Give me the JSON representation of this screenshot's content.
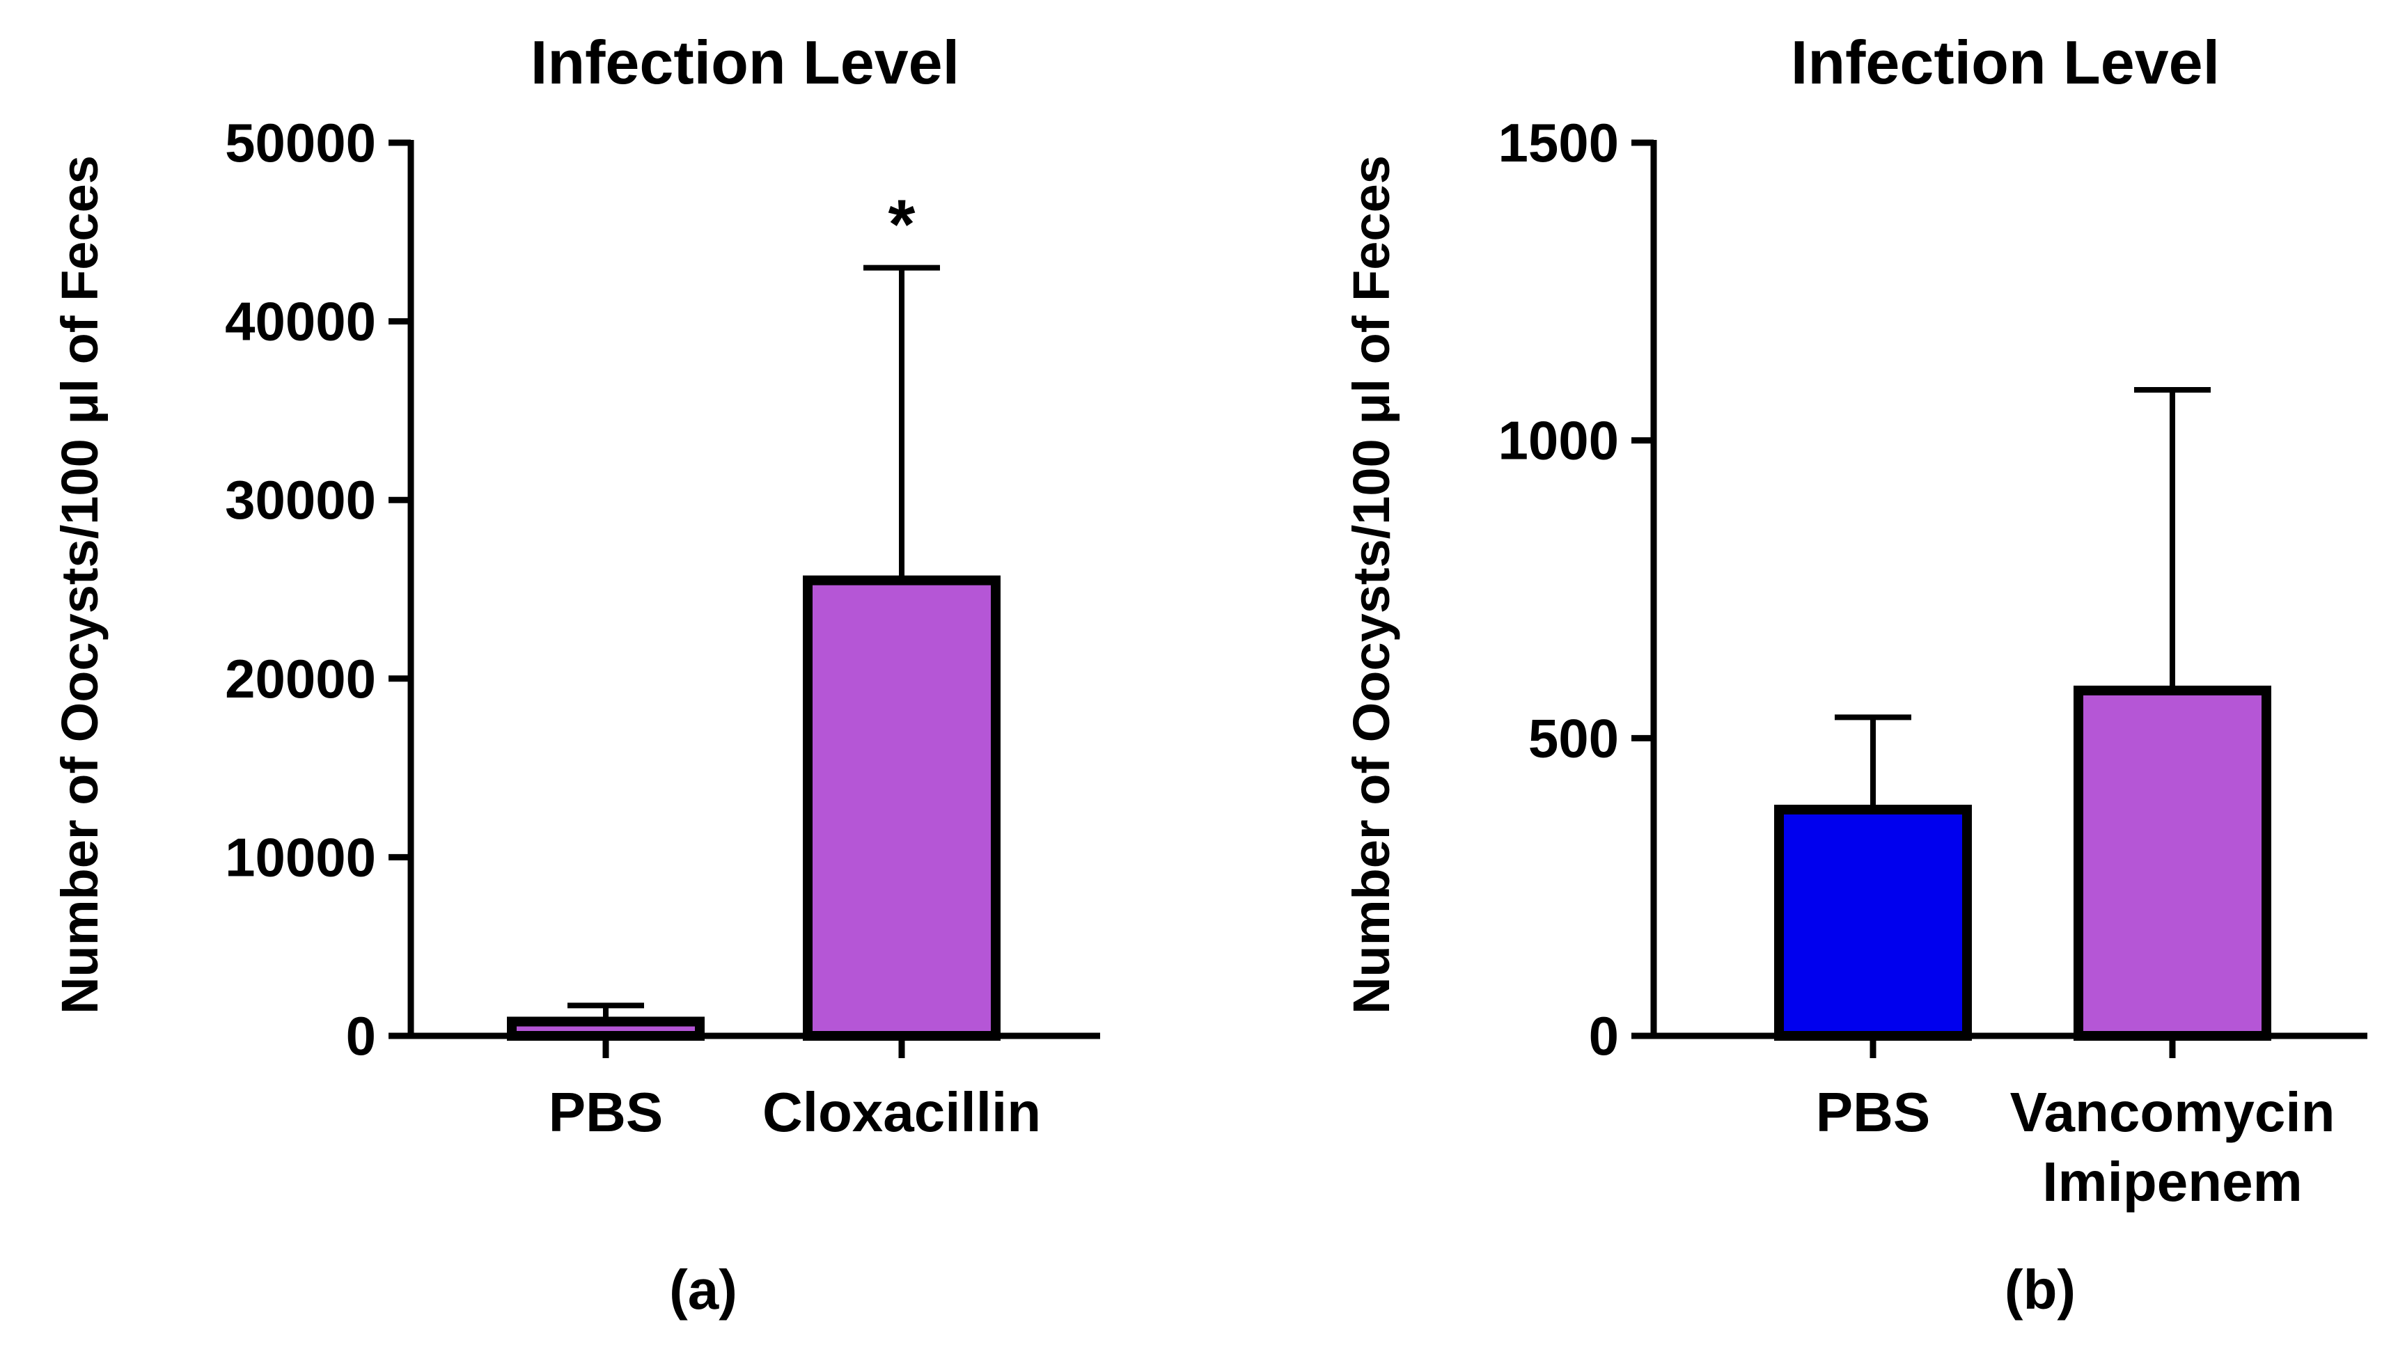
{
  "chart_data": [
    {
      "panel_label": "(a)",
      "type": "bar",
      "title": "Infection Level",
      "xlabel": "",
      "ylabel": "Number of Oocysts/100 μl of Feces",
      "ylim": [
        0,
        50000
      ],
      "yticks": [
        0,
        10000,
        20000,
        30000,
        40000,
        50000
      ],
      "ytick_labels": [
        "0",
        "10000",
        "20000",
        "30000",
        "40000",
        "50000"
      ],
      "grid": false,
      "categories": [
        "PBS",
        "Cloxacillin"
      ],
      "category_lines": [
        [
          "PBS"
        ],
        [
          "Cloxacillin"
        ]
      ],
      "values": [
        800,
        25500
      ],
      "errors": [
        900,
        17500
      ],
      "colors": [
        "#b556d6",
        "#b556d6"
      ],
      "annotations": [
        {
          "category": "Cloxacillin",
          "text": "*"
        }
      ]
    },
    {
      "panel_label": "(b)",
      "type": "bar",
      "title": "Infection Level",
      "xlabel": "",
      "ylabel": "Number of Oocysts/100 μl of Feces",
      "ylim": [
        0,
        1500
      ],
      "yticks": [
        0,
        500,
        1000,
        1500
      ],
      "ytick_labels": [
        "0",
        "500",
        "1000",
        "1500"
      ],
      "grid": false,
      "categories": [
        "PBS",
        "Vancomycin Imipenem"
      ],
      "category_lines": [
        [
          "PBS"
        ],
        [
          "Vancomycin",
          "Imipenem"
        ]
      ],
      "values": [
        380,
        580
      ],
      "errors": [
        155,
        505
      ],
      "colors": [
        "#0000ee",
        "#b556d6"
      ],
      "annotations": []
    }
  ]
}
